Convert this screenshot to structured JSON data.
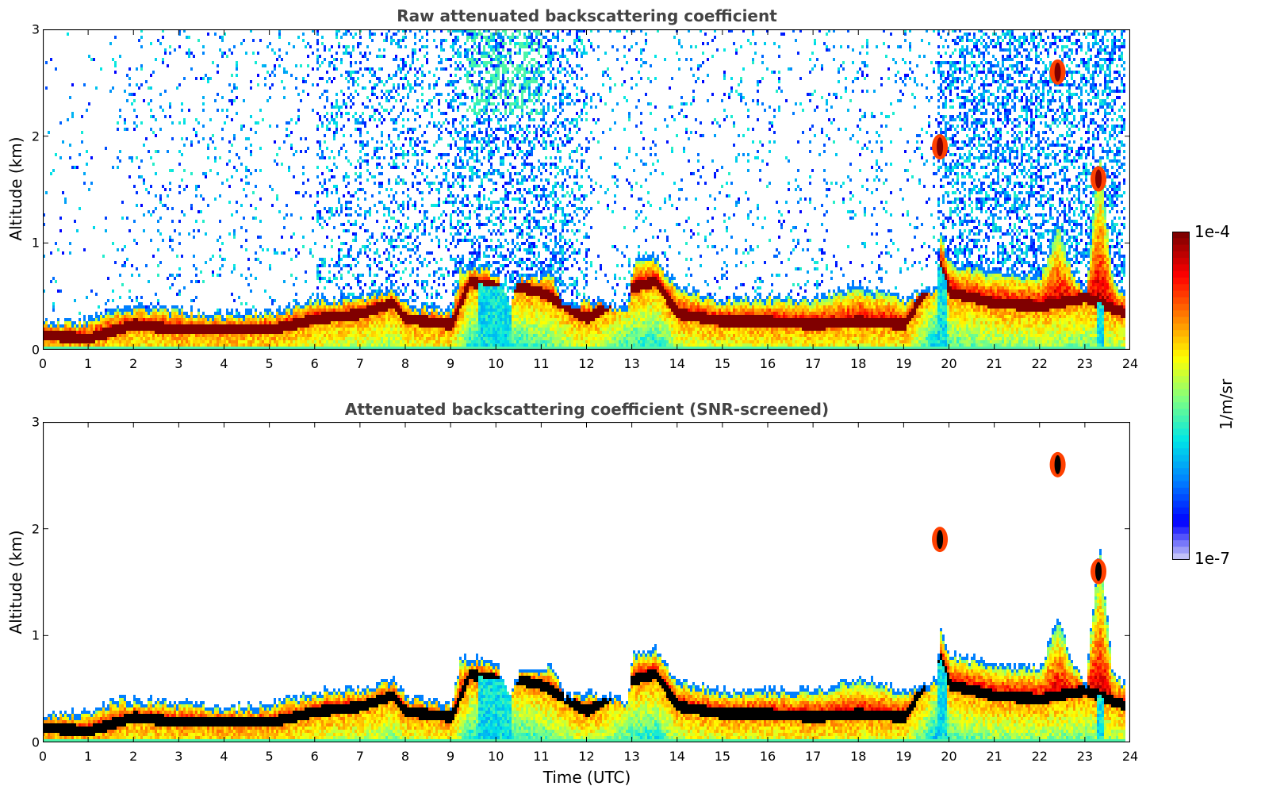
{
  "chart_data": [
    {
      "type": "heatmap",
      "title": "Raw attenuated backscattering coefficient",
      "xlabel": "",
      "ylabel": "Altitude (km)",
      "xlim": [
        0,
        24
      ],
      "ylim": [
        0,
        3
      ],
      "xticks": [
        "0",
        "1",
        "2",
        "3",
        "4",
        "5",
        "6",
        "7",
        "8",
        "9",
        "10",
        "11",
        "12",
        "13",
        "14",
        "15",
        "16",
        "17",
        "18",
        "19",
        "20",
        "21",
        "22",
        "23",
        "24"
      ],
      "yticks": [
        "0",
        "1",
        "2",
        "3"
      ],
      "screened": false,
      "boundary_layer_top_km": [
        [
          0,
          0.28
        ],
        [
          1,
          0.3
        ],
        [
          1.6,
          0.42
        ],
        [
          2,
          0.42
        ],
        [
          3,
          0.4
        ],
        [
          4,
          0.35
        ],
        [
          5,
          0.38
        ],
        [
          5.6,
          0.45
        ],
        [
          6,
          0.5
        ],
        [
          7,
          0.52
        ],
        [
          7.7,
          0.62
        ],
        [
          8,
          0.45
        ],
        [
          9,
          0.38
        ],
        [
          9.2,
          0.8
        ],
        [
          9.7,
          0.8
        ],
        [
          10,
          0.75
        ],
        [
          10.3,
          0.45
        ],
        [
          10.5,
          0.72
        ],
        [
          10.9,
          0.7
        ],
        [
          11.2,
          0.75
        ],
        [
          11.5,
          0.45
        ],
        [
          12,
          0.5
        ],
        [
          12.9,
          0.4
        ],
        [
          13,
          0.85
        ],
        [
          13.5,
          0.9
        ],
        [
          14,
          0.6
        ],
        [
          15,
          0.5
        ],
        [
          16,
          0.52
        ],
        [
          17,
          0.5
        ],
        [
          18,
          0.62
        ],
        [
          19,
          0.5
        ],
        [
          19.7,
          0.6
        ],
        [
          19.8,
          1.1
        ],
        [
          20,
          0.85
        ],
        [
          21,
          0.75
        ],
        [
          22,
          0.72
        ],
        [
          22.4,
          1.2
        ],
        [
          22.7,
          0.75
        ],
        [
          23,
          0.6
        ],
        [
          23.3,
          1.9
        ],
        [
          23.6,
          0.65
        ],
        [
          23.9,
          0.55
        ]
      ],
      "black_core_km": [
        [
          0,
          0.15
        ],
        [
          1,
          0.12
        ],
        [
          2,
          0.25
        ],
        [
          3,
          0.2
        ],
        [
          4,
          0.2
        ],
        [
          5,
          0.2
        ],
        [
          6,
          0.3
        ],
        [
          7,
          0.35
        ],
        [
          7.7,
          0.45
        ],
        [
          8,
          0.3
        ],
        [
          9,
          0.25
        ],
        [
          9.4,
          0.65
        ],
        [
          10,
          0.6
        ],
        [
          10.5,
          0.6
        ],
        [
          11,
          0.55
        ],
        [
          12,
          0.3
        ],
        [
          13,
          0.6
        ],
        [
          13.5,
          0.65
        ],
        [
          14,
          0.35
        ],
        [
          15,
          0.28
        ],
        [
          16,
          0.28
        ],
        [
          17,
          0.25
        ],
        [
          18,
          0.28
        ],
        [
          19,
          0.25
        ],
        [
          19.8,
          0.8
        ],
        [
          20,
          0.55
        ],
        [
          21,
          0.45
        ],
        [
          22,
          0.42
        ],
        [
          23,
          0.5
        ],
        [
          23.9,
          0.35
        ]
      ],
      "clouds": [
        {
          "time": 22.4,
          "alt_km": 2.6
        },
        {
          "time": 23.3,
          "alt_km": 1.6
        },
        {
          "time": 19.8,
          "alt_km": 1.9
        }
      ]
    },
    {
      "type": "heatmap",
      "title": "Attenuated backscattering coefficient (SNR-screened)",
      "xlabel": "Time (UTC)",
      "ylabel": "Altitude (km)",
      "xlim": [
        0,
        24
      ],
      "ylim": [
        0,
        3
      ],
      "xticks": [
        "0",
        "1",
        "2",
        "3",
        "4",
        "5",
        "6",
        "7",
        "8",
        "9",
        "10",
        "11",
        "12",
        "13",
        "14",
        "15",
        "16",
        "17",
        "18",
        "19",
        "20",
        "21",
        "22",
        "23",
        "24"
      ],
      "yticks": [
        "0",
        "1",
        "2",
        "3"
      ],
      "screened": true,
      "clouds": [
        {
          "time": 22.4,
          "alt_km": 2.6
        },
        {
          "time": 23.3,
          "alt_km": 1.6
        },
        {
          "time": 19.8,
          "alt_km": 1.9
        }
      ]
    }
  ],
  "colorbar": {
    "label": "1/m/sr",
    "max_label": "1e-4",
    "min_label": "1e-7",
    "scale": "log",
    "range": [
      1e-07,
      0.0001
    ],
    "colormap": [
      "#e6e6f5",
      "#0000ff",
      "#0080ff",
      "#00e6e6",
      "#80ff80",
      "#ffff00",
      "#ff8000",
      "#ff0000",
      "#800000"
    ]
  }
}
